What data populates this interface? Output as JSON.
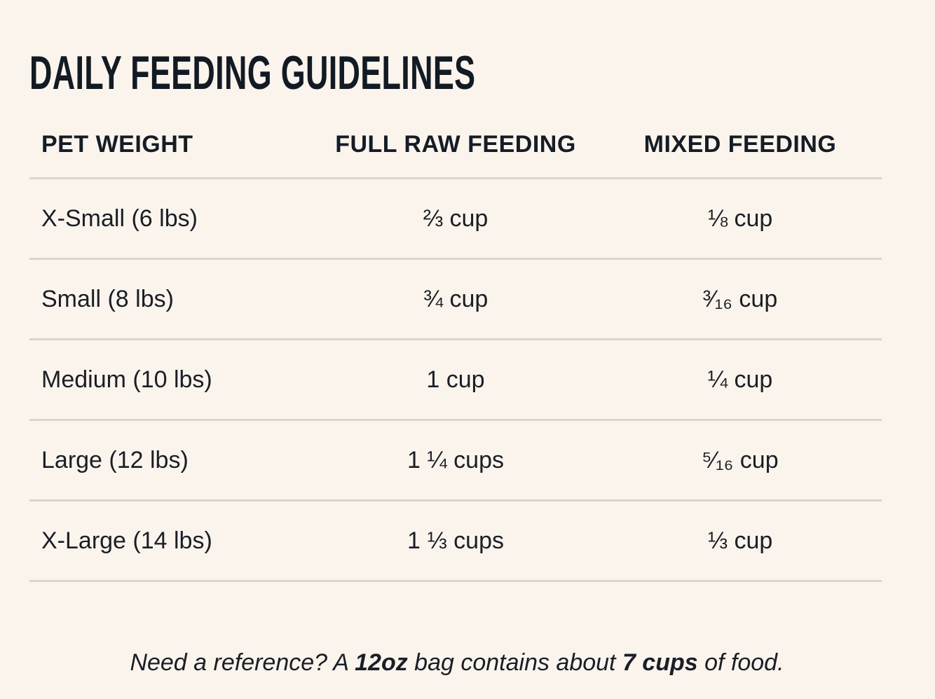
{
  "title": "DAILY FEEDING GUIDELINES",
  "table": {
    "headers": [
      "PET WEIGHT",
      "FULL RAW FEEDING",
      "MIXED FEEDING"
    ],
    "rows": [
      [
        "X-Small (6 lbs)",
        "⅔ cup",
        "⅛ cup"
      ],
      [
        "Small (8 lbs)",
        "¾ cup",
        "³⁄₁₆ cup"
      ],
      [
        "Medium (10 lbs)",
        "1 cup",
        "¼ cup"
      ],
      [
        "Large (12 lbs)",
        "1 ¼ cups",
        "⁵⁄₁₆ cup"
      ],
      [
        "X-Large (14 lbs)",
        "1 ⅓ cups",
        "⅓ cup"
      ]
    ]
  },
  "note": {
    "part1": "Need a reference? A ",
    "bold1": "12oz",
    "part2": " bag contains about ",
    "bold2": "7 cups",
    "part3": " of food."
  }
}
